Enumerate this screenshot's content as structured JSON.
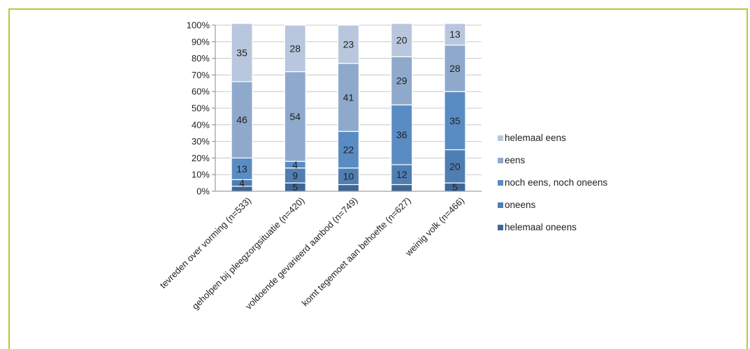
{
  "chart_data": {
    "type": "bar",
    "stacked": true,
    "percent": true,
    "categories": [
      "tevreden over vorming (n=533)",
      "geholpen bij pleegzorgsituatie (n=420)",
      "voldoende gevarieerd aanbod (n=749)",
      "komt tegemoet aan behoefte (n=627)",
      "weinig volk (n=466)"
    ],
    "series": [
      {
        "name": "helemaal oneens",
        "color": "#3f6796",
        "values": [
          3,
          5,
          4,
          4,
          5
        ],
        "labels": [
          "",
          "5",
          "",
          "",
          "5"
        ]
      },
      {
        "name": "oneens",
        "color": "#4f7eb3",
        "values": [
          4,
          9,
          10,
          12,
          20
        ],
        "labels": [
          "4",
          "9",
          "10",
          "12",
          "20"
        ]
      },
      {
        "name": "noch eens, noch oneens",
        "color": "#5a8cc4",
        "values": [
          13,
          4,
          22,
          36,
          35
        ],
        "labels": [
          "13",
          "4",
          "22",
          "36",
          "35"
        ]
      },
      {
        "name": "eens",
        "color": "#8fa9cc",
        "values": [
          46,
          54,
          41,
          29,
          28
        ],
        "labels": [
          "46",
          "54",
          "41",
          "29",
          "28"
        ]
      },
      {
        "name": "helemaal eens",
        "color": "#b8c7dd",
        "values": [
          35,
          28,
          23,
          20,
          13
        ],
        "labels": [
          "35",
          "28",
          "23",
          "20",
          "13"
        ]
      }
    ],
    "yticks": [
      "0%",
      "10%",
      "20%",
      "30%",
      "40%",
      "50%",
      "60%",
      "70%",
      "80%",
      "90%",
      "100%"
    ],
    "ylim": [
      0,
      100
    ],
    "legend": [
      "helemaal eens",
      "eens",
      "noch eens, noch oneens",
      "oneens",
      "helemaal oneens"
    ],
    "legend_position": "right",
    "grid": true
  }
}
